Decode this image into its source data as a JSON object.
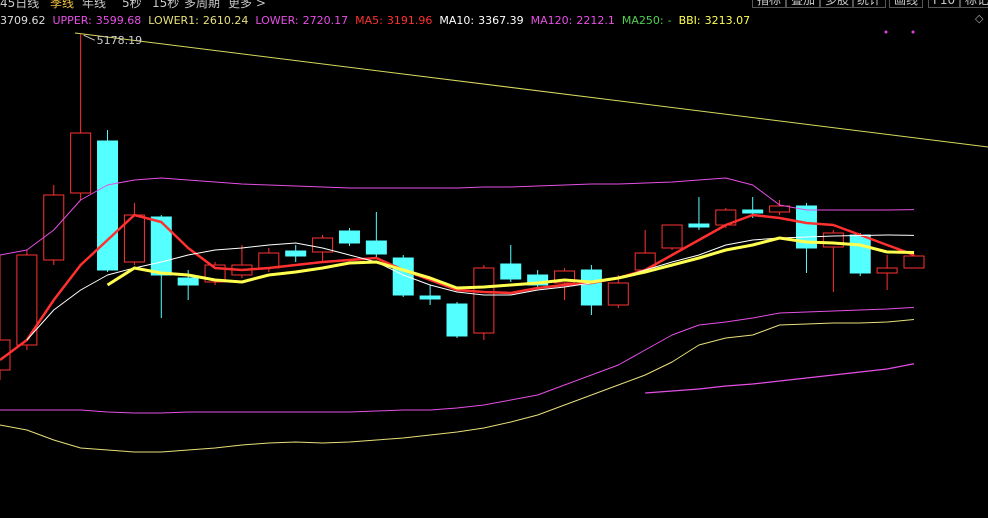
{
  "toolbar": {
    "periods": [
      "45日线",
      "季线",
      "年线",
      "5秒",
      "15秒",
      "多周期",
      "更多 >"
    ],
    "buttons": [
      "指标",
      "叠加",
      "多股",
      "统计",
      "画线",
      "F10",
      "标记"
    ]
  },
  "chart_data": {
    "type": "candlestick",
    "top_value": 3709.62,
    "separator": ":",
    "ylim": [
      824,
      5360
    ],
    "up_color": "#ff3232",
    "down_color": "#54ffff",
    "candles": {
      "open": [
        2156,
        2381,
        3146,
        3749,
        4217,
        3128,
        3533,
        2984,
        2948,
        3011,
        3074,
        3227,
        3218,
        3407,
        3317,
        3164,
        2822,
        2750,
        2489,
        3110,
        3011,
        2939,
        3056,
        2741,
        3056,
        3254,
        3470,
        3461,
        3596,
        3578,
        3632,
        3263,
        3371,
        3029,
        3074
      ],
      "close": [
        2426,
        3191,
        3731,
        4289,
        3056,
        3551,
        3011,
        2921,
        3101,
        3101,
        3209,
        3182,
        3344,
        3299,
        3200,
        2831,
        2795,
        2462,
        3074,
        2975,
        2921,
        3047,
        2741,
        2939,
        3209,
        3461,
        3443,
        3596,
        3569,
        3632,
        3254,
        3389,
        3029,
        3074,
        3182
      ],
      "high": [
        3191,
        3236,
        3821,
        5178.19,
        4316,
        3659,
        3551,
        3056,
        3128,
        3281,
        3254,
        3281,
        3371,
        3434,
        3578,
        3191,
        2921,
        2768,
        3101,
        3281,
        3056,
        3074,
        3101,
        3011,
        3416,
        3461,
        3713,
        3614,
        3713,
        3686,
        3659,
        3416,
        3389,
        3191,
        3191
      ],
      "low": [
        2066,
        2336,
        3101,
        3686,
        3038,
        3101,
        2624,
        2786,
        2921,
        2984,
        3038,
        3128,
        3128,
        3272,
        3164,
        2813,
        2741,
        2444,
        2426,
        2948,
        2894,
        2786,
        2651,
        2714,
        3038,
        3236,
        3416,
        3434,
        3524,
        3551,
        3029,
        2858,
        3002,
        2876,
        3074
      ]
    },
    "series": [
      {
        "name": "UPPER",
        "color": "#e64fe6",
        "width": 1,
        "values": [
          3191,
          3236,
          3416,
          3686,
          3821,
          3866,
          3884,
          3866,
          3848,
          3830,
          3821,
          3812,
          3803,
          3794,
          3794,
          3794,
          3794,
          3794,
          3803,
          3803,
          3812,
          3821,
          3830,
          3830,
          3839,
          3848,
          3866,
          3884,
          3821,
          3641,
          3596,
          3596,
          3596,
          3596,
          3599.68
        ]
      },
      {
        "name": "LOWER1",
        "color": "#e8e07a",
        "width": 1,
        "values": [
          1661,
          1616,
          1526,
          1454,
          1436,
          1418,
          1418,
          1436,
          1454,
          1481,
          1499,
          1508,
          1499,
          1508,
          1526,
          1544,
          1571,
          1598,
          1634,
          1688,
          1751,
          1841,
          1931,
          2021,
          2111,
          2228,
          2381,
          2444,
          2471,
          2561,
          2570,
          2579,
          2579,
          2588,
          2610.24
        ]
      },
      {
        "name": "LOWER",
        "color": "#e64fe6",
        "width": 1,
        "values": [
          1796,
          1796,
          1796,
          1796,
          1778,
          1769,
          1769,
          1778,
          1778,
          1778,
          1778,
          1778,
          1778,
          1778,
          1787,
          1796,
          1796,
          1814,
          1841,
          1886,
          1931,
          2021,
          2111,
          2201,
          2336,
          2471,
          2561,
          2588,
          2624,
          2669,
          2678,
          2687,
          2696,
          2705,
          2720.17
        ]
      },
      {
        "name": "MA5",
        "color": "#ff3030",
        "width": 2.5,
        "values": [
          2246,
          2426,
          2786,
          3101,
          3326,
          3551,
          3488,
          3254,
          3074,
          3056,
          3074,
          3101,
          3128,
          3146,
          3164,
          3056,
          2966,
          2876,
          2858,
          2849,
          2894,
          2921,
          2939,
          2984,
          3056,
          3191,
          3326,
          3461,
          3551,
          3524,
          3479,
          3461,
          3371,
          3281,
          3191.96
        ]
      },
      {
        "name": "MA10",
        "color": "#ffffff",
        "width": 1,
        "values": [
          null,
          2426,
          2696,
          2876,
          3011,
          3074,
          3128,
          3191,
          3236,
          3254,
          3281,
          3299,
          3254,
          3191,
          3128,
          3011,
          2921,
          2858,
          2831,
          2831,
          2876,
          2903,
          2939,
          2984,
          3056,
          3128,
          3191,
          3281,
          3326,
          3344,
          3353,
          3362,
          3367,
          3371,
          3367.39
        ]
      },
      {
        "name": "MA120",
        "color": "#e64fe6",
        "width": 1.2,
        "values": [
          null,
          null,
          null,
          null,
          null,
          null,
          null,
          null,
          null,
          null,
          null,
          null,
          null,
          null,
          null,
          null,
          null,
          null,
          null,
          null,
          null,
          null,
          null,
          null,
          1949,
          1967,
          1985,
          2012,
          2030,
          2057,
          2084,
          2111,
          2138,
          2165,
          2212.1
        ]
      },
      {
        "name": "MA250",
        "color": "#4ed04e",
        "width": 1,
        "value_label": "-",
        "values": [
          null,
          null,
          null,
          null,
          null,
          null,
          null,
          null,
          null,
          null,
          null,
          null,
          null,
          null,
          null,
          null,
          null,
          null,
          null,
          null,
          null,
          null,
          null,
          null,
          null,
          null,
          null,
          null,
          null,
          null,
          null,
          null,
          null,
          null,
          null
        ]
      },
      {
        "name": "BBI",
        "color": "#ffff50",
        "width": 3,
        "values": [
          null,
          null,
          null,
          null,
          2921,
          3074,
          3029,
          3011,
          2966,
          2948,
          3011,
          3038,
          3074,
          3119,
          3128,
          3056,
          2984,
          2894,
          2903,
          2921,
          2939,
          2966,
          2948,
          2984,
          3038,
          3101,
          3164,
          3236,
          3281,
          3344,
          3308,
          3299,
          3281,
          3218,
          3213.07
        ]
      }
    ]
  }
}
